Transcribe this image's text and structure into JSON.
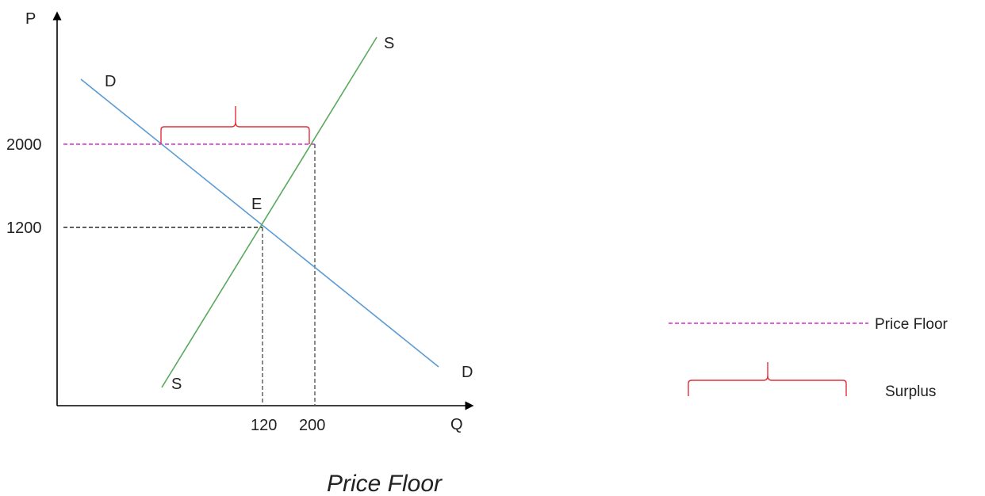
{
  "diagram": {
    "axis_labels": {
      "y": "P",
      "x": "Q"
    },
    "price_ticks": [
      "2000",
      "1200"
    ],
    "quantity_ticks": [
      "120",
      "200"
    ],
    "curve_labels": {
      "demand_top": "D",
      "demand_bottom": "D",
      "supply_top": "S",
      "supply_bottom": "S",
      "equilibrium": "E"
    },
    "legend": {
      "price_floor": "Price Floor",
      "surplus": "Surplus"
    },
    "title": "Price Floor",
    "colors": {
      "axes": "#000000",
      "demand": "#5b9bd5",
      "supply": "#5aa95e",
      "price_floor": "#cc00cc",
      "surplus_brace": "#e0303a",
      "guide_lines": "#000000"
    }
  }
}
